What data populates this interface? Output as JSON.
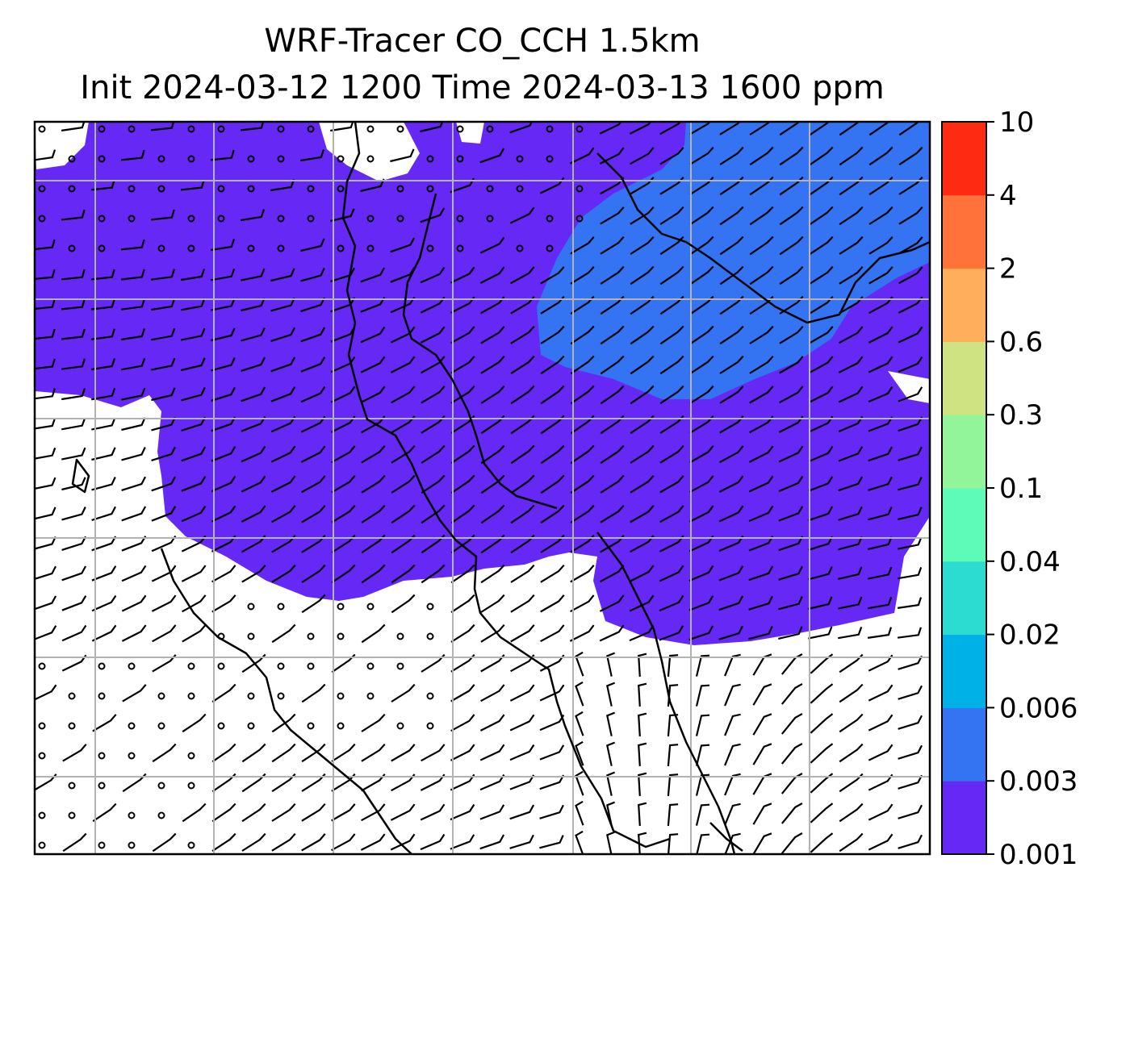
{
  "title": {
    "line1": "WRF-Tracer CO_CCH 1.5km",
    "line2": "Init 2024-03-12 1200 Time 2024-03-13 1600 ppm"
  },
  "colorbar": {
    "tick_labels": [
      "0.001",
      "0.003",
      "0.006",
      "0.02",
      "0.04",
      "0.1",
      "0.3",
      "0.6",
      "2",
      "4",
      "10"
    ],
    "colors": [
      "#6528f5",
      "#3474f2",
      "#00b1e8",
      "#2cdcd0",
      "#5efab8",
      "#92f59a",
      "#d0e382",
      "#ffae5c",
      "#ff733a",
      "#ff2a12"
    ]
  },
  "map": {
    "field_colors": {
      "low": "#6528f5",
      "mid": "#3474f2",
      "background": "#ffffff"
    },
    "gridline_color": "#b3b3b3",
    "coastline_color": "#000000",
    "wind_barbs": true
  }
}
